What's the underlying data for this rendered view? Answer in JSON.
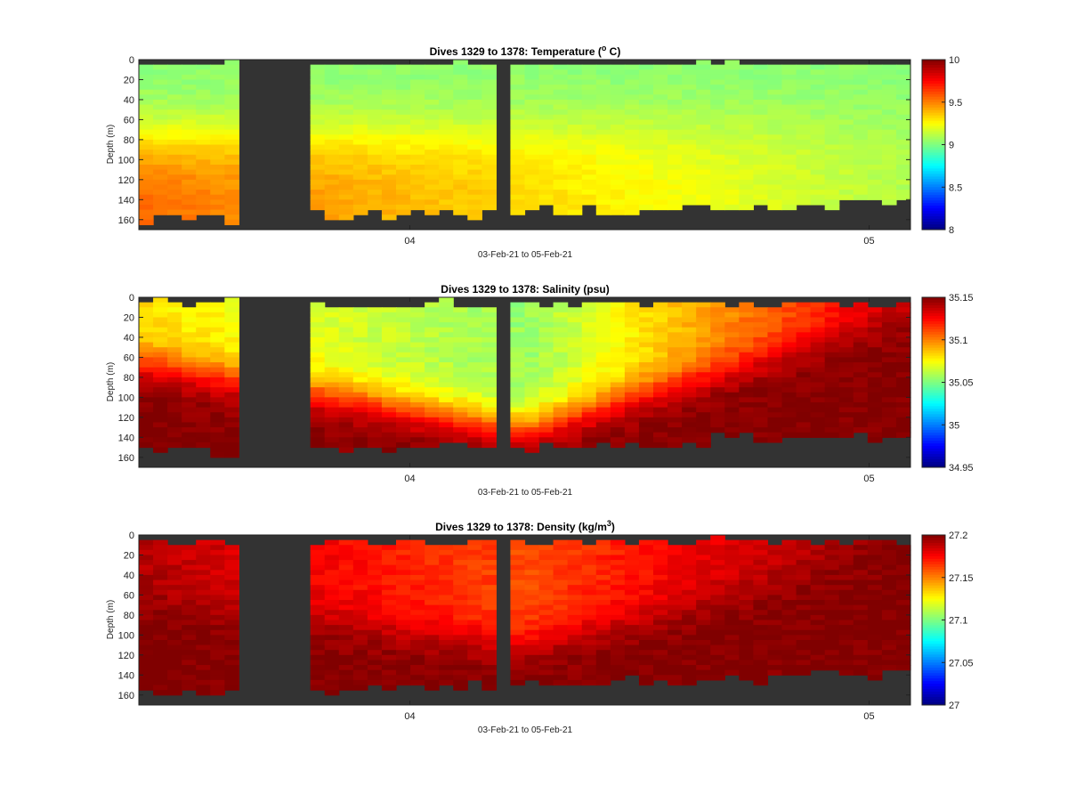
{
  "figure": {
    "source_hint": "Seaglider section plots",
    "panels": [
      {
        "id": "temperature",
        "title_prefix": "Dives 1329 to 1378: Temperature (",
        "title_sup": "o",
        "title_suffix": " C)",
        "ylabel": "Depth (m)",
        "xlabel": "03-Feb-21 to 05-Feb-21",
        "colorbar_ticks": [
          "10",
          "9.5",
          "9",
          "8.5",
          "8"
        ],
        "colorbar_range": [
          8,
          10
        ]
      },
      {
        "id": "salinity",
        "title_prefix": "Dives 1329 to 1378: Salinity (psu)",
        "title_sup": "",
        "title_suffix": "",
        "ylabel": "Depth (m)",
        "xlabel": "03-Feb-21 to 05-Feb-21",
        "colorbar_ticks": [
          "35.15",
          "35.1",
          "35.05",
          "35",
          "34.95"
        ],
        "colorbar_range": [
          34.95,
          35.15
        ]
      },
      {
        "id": "density",
        "title_prefix": "Dives 1329 to 1378: Density (kg/m",
        "title_sup": "3",
        "title_suffix": ")",
        "ylabel": "Depth (m)",
        "xlabel": "03-Feb-21 to 05-Feb-21",
        "colorbar_ticks": [
          "27.2",
          "27.15",
          "27.1",
          "27.05",
          "27"
        ],
        "colorbar_range": [
          27,
          27.2
        ]
      }
    ]
  },
  "chart_data": [
    {
      "type": "heatmap",
      "title": "Dives 1329 to 1378: Temperature (o C)",
      "xlabel": "03-Feb-21 to 05-Feb-21",
      "ylabel": "Depth (m)",
      "y_ticks": [
        0,
        20,
        40,
        60,
        80,
        100,
        120,
        140,
        160
      ],
      "ylim": [
        0,
        170
      ],
      "y_reversed": true,
      "x_tick_labels": [
        "04",
        "05"
      ],
      "colormap": "jet",
      "clim": [
        8,
        10
      ],
      "time_start_day": 3.41,
      "time_end_day": 5.09,
      "gaps_days": [
        [
          3.64,
          3.78
        ],
        [
          4.2,
          4.23
        ]
      ],
      "surface_value": 9.02,
      "deep_value_start": 9.55,
      "deep_value_end": 9.1,
      "transition_depth_start": 80,
      "transition_depth_end": 60,
      "bottom_depth_start": 166,
      "bottom_depth_end": 150
    },
    {
      "type": "heatmap",
      "title": "Dives 1329 to 1378: Salinity (psu)",
      "xlabel": "03-Feb-21 to 05-Feb-21",
      "ylabel": "Depth (m)",
      "y_ticks": [
        0,
        20,
        40,
        60,
        80,
        100,
        120,
        140,
        160
      ],
      "ylim": [
        0,
        170
      ],
      "y_reversed": true,
      "x_tick_labels": [
        "04",
        "05"
      ],
      "colormap": "jet",
      "clim": [
        34.95,
        35.15
      ],
      "time_start_day": 3.41,
      "time_end_day": 5.09,
      "gaps_days": [
        [
          3.64,
          3.78
        ],
        [
          4.2,
          4.23
        ]
      ],
      "surface_value_start": 35.08,
      "surface_value_mid": 35.055,
      "surface_value_end": 35.135,
      "deep_value": 35.15,
      "transition_depth_start": 65,
      "transition_depth_mid": 130,
      "transition_depth_end": 20,
      "bottom_depth_start": 162,
      "bottom_depth_end": 145
    },
    {
      "type": "heatmap",
      "title": "Dives 1329 to 1378: Density (kg/m3)",
      "xlabel": "03-Feb-21 to 05-Feb-21",
      "ylabel": "Depth (m)",
      "y_ticks": [
        0,
        20,
        40,
        60,
        80,
        100,
        120,
        140,
        160
      ],
      "ylim": [
        0,
        170
      ],
      "y_reversed": true,
      "x_tick_labels": [
        "04",
        "05"
      ],
      "colormap": "jet",
      "clim": [
        27,
        27.2
      ],
      "time_start_day": 3.41,
      "time_end_day": 5.09,
      "gaps_days": [
        [
          3.64,
          3.78
        ],
        [
          4.2,
          4.23
        ]
      ],
      "surface_value_start": 27.19,
      "surface_value_mid": 27.16,
      "surface_value_end": 27.2,
      "deep_value": 27.2,
      "transition_depth_start": 65,
      "transition_depth_mid": 110,
      "transition_depth_end": 20,
      "bottom_depth_start": 165,
      "bottom_depth_end": 145
    }
  ]
}
